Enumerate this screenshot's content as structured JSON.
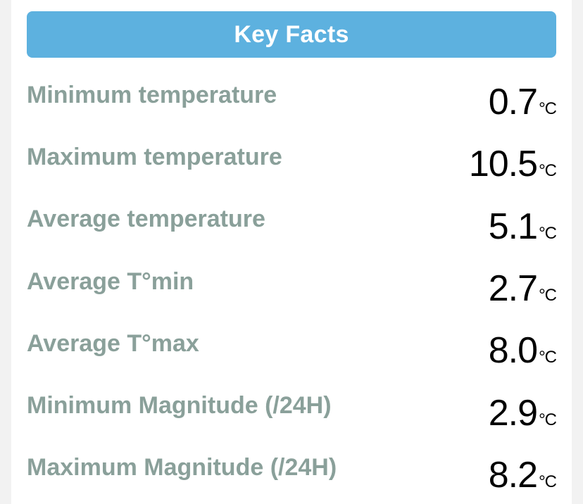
{
  "panel": {
    "title": "Key Facts"
  },
  "facts": [
    {
      "label": "Minimum temperature",
      "value": "0.7",
      "unit": "°C"
    },
    {
      "label": "Maximum temperature",
      "value": "10.5",
      "unit": "°C"
    },
    {
      "label": "Average temperature",
      "value": "5.1",
      "unit": "°C"
    },
    {
      "label": "Average T°min",
      "value": "2.7",
      "unit": "°C"
    },
    {
      "label": "Average T°max",
      "value": "8.0",
      "unit": "°C"
    },
    {
      "label": "Minimum Magnitude (/24H)",
      "value": "2.9",
      "unit": "°C"
    },
    {
      "label": "Maximum Magnitude (/24H)",
      "value": "8.2",
      "unit": "°C"
    }
  ],
  "colors": {
    "header_bg": "#5db1df",
    "header_text": "#ffffff",
    "label_text": "#8aa09a",
    "value_text": "#000000"
  }
}
